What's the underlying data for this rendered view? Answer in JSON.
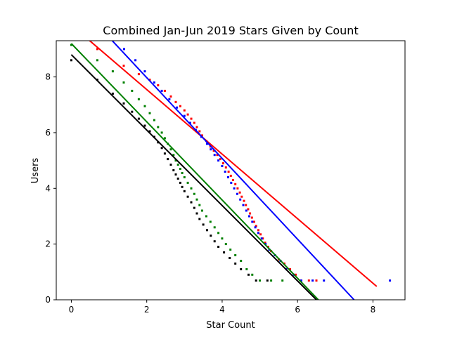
{
  "chart_data": {
    "type": "scatter",
    "title": "Combined Jan-Jun 2019 Stars Given by Count",
    "xlabel": "Star Count",
    "ylabel": "Users",
    "xlim": [
      -0.4,
      8.85
    ],
    "ylim": [
      0,
      9.3
    ],
    "x_ticks": [
      "0",
      "2",
      "4",
      "6",
      "8"
    ],
    "y_ticks": [
      "0",
      "2",
      "4",
      "6",
      "8"
    ],
    "grid": false,
    "legend": "none",
    "series": [
      {
        "color": "#ff0000",
        "points": [
          [
            0.69,
            9.0
          ],
          [
            1.39,
            8.4
          ],
          [
            1.79,
            8.1
          ],
          [
            2.08,
            7.9
          ],
          [
            2.3,
            7.7
          ],
          [
            2.48,
            7.5
          ],
          [
            2.64,
            7.3
          ],
          [
            2.77,
            7.1
          ],
          [
            2.89,
            6.95
          ],
          [
            3.0,
            6.8
          ],
          [
            3.09,
            6.65
          ],
          [
            3.18,
            6.5
          ],
          [
            3.26,
            6.35
          ],
          [
            3.33,
            6.2
          ],
          [
            3.4,
            6.05
          ],
          [
            3.47,
            5.9
          ],
          [
            3.58,
            5.7
          ],
          [
            3.69,
            5.5
          ],
          [
            3.78,
            5.35
          ],
          [
            3.87,
            5.2
          ],
          [
            3.95,
            5.05
          ],
          [
            4.03,
            4.9
          ],
          [
            4.1,
            4.75
          ],
          [
            4.17,
            4.6
          ],
          [
            4.23,
            4.45
          ],
          [
            4.29,
            4.3
          ],
          [
            4.35,
            4.15
          ],
          [
            4.41,
            4.0
          ],
          [
            4.47,
            3.85
          ],
          [
            4.52,
            3.7
          ],
          [
            4.58,
            3.55
          ],
          [
            4.63,
            3.4
          ],
          [
            4.69,
            3.25
          ],
          [
            4.74,
            3.1
          ],
          [
            4.79,
            2.95
          ],
          [
            4.85,
            2.8
          ],
          [
            4.9,
            2.65
          ],
          [
            4.96,
            2.5
          ],
          [
            5.02,
            2.35
          ],
          [
            5.08,
            2.2
          ],
          [
            5.14,
            2.05
          ],
          [
            5.22,
            1.9
          ],
          [
            5.3,
            1.75
          ],
          [
            5.4,
            1.6
          ],
          [
            5.5,
            1.45
          ],
          [
            5.65,
            1.3
          ],
          [
            5.8,
            1.1
          ],
          [
            5.95,
            0.9
          ],
          [
            6.1,
            0.69
          ],
          [
            6.3,
            0.69
          ],
          [
            6.5,
            0.69
          ]
        ],
        "fit": [
          [
            0.4,
            9.4
          ],
          [
            8.1,
            0.48
          ]
        ]
      },
      {
        "color": "#0000ff",
        "points": [
          [
            1.4,
            9.0
          ],
          [
            1.7,
            8.6
          ],
          [
            1.95,
            8.2
          ],
          [
            2.2,
            7.8
          ],
          [
            2.4,
            7.5
          ],
          [
            2.6,
            7.2
          ],
          [
            2.8,
            6.9
          ],
          [
            3.0,
            6.6
          ],
          [
            3.15,
            6.35
          ],
          [
            3.3,
            6.1
          ],
          [
            3.45,
            5.85
          ],
          [
            3.6,
            5.6
          ],
          [
            3.7,
            5.4
          ],
          [
            3.8,
            5.2
          ],
          [
            3.9,
            5.0
          ],
          [
            4.0,
            4.8
          ],
          [
            4.08,
            4.6
          ],
          [
            4.16,
            4.4
          ],
          [
            4.24,
            4.2
          ],
          [
            4.32,
            4.0
          ],
          [
            4.4,
            3.8
          ],
          [
            4.48,
            3.6
          ],
          [
            4.56,
            3.4
          ],
          [
            4.64,
            3.2
          ],
          [
            4.72,
            3.0
          ],
          [
            4.8,
            2.8
          ],
          [
            4.88,
            2.6
          ],
          [
            4.96,
            2.4
          ],
          [
            5.05,
            2.2
          ],
          [
            5.15,
            2.0
          ],
          [
            5.25,
            1.8
          ],
          [
            5.4,
            1.6
          ],
          [
            5.55,
            1.4
          ],
          [
            5.7,
            1.1
          ],
          [
            5.9,
            0.9
          ],
          [
            6.1,
            0.69
          ],
          [
            6.4,
            0.69
          ],
          [
            6.7,
            0.69
          ],
          [
            8.45,
            0.69
          ]
        ],
        "fit": [
          [
            1.05,
            9.35
          ],
          [
            7.5,
            0.0
          ]
        ]
      },
      {
        "color": "#008000",
        "points": [
          [
            0.0,
            9.15
          ],
          [
            0.69,
            8.6
          ],
          [
            1.1,
            8.2
          ],
          [
            1.39,
            7.8
          ],
          [
            1.61,
            7.5
          ],
          [
            1.79,
            7.2
          ],
          [
            1.95,
            6.95
          ],
          [
            2.08,
            6.7
          ],
          [
            2.2,
            6.45
          ],
          [
            2.3,
            6.2
          ],
          [
            2.4,
            6.0
          ],
          [
            2.48,
            5.8
          ],
          [
            2.56,
            5.6
          ],
          [
            2.64,
            5.4
          ],
          [
            2.71,
            5.2
          ],
          [
            2.77,
            5.0
          ],
          [
            2.83,
            4.85
          ],
          [
            2.89,
            4.7
          ],
          [
            2.94,
            4.55
          ],
          [
            3.0,
            4.4
          ],
          [
            3.09,
            4.2
          ],
          [
            3.18,
            4.0
          ],
          [
            3.26,
            3.8
          ],
          [
            3.33,
            3.6
          ],
          [
            3.4,
            3.4
          ],
          [
            3.47,
            3.2
          ],
          [
            3.58,
            3.0
          ],
          [
            3.69,
            2.8
          ],
          [
            3.8,
            2.6
          ],
          [
            3.9,
            2.4
          ],
          [
            4.0,
            2.2
          ],
          [
            4.1,
            2.0
          ],
          [
            4.22,
            1.8
          ],
          [
            4.35,
            1.6
          ],
          [
            4.5,
            1.4
          ],
          [
            4.65,
            1.1
          ],
          [
            4.8,
            0.9
          ],
          [
            5.0,
            0.69
          ],
          [
            5.3,
            0.69
          ],
          [
            5.6,
            0.69
          ]
        ],
        "fit": [
          [
            0.0,
            9.2
          ],
          [
            6.55,
            0.0
          ]
        ]
      },
      {
        "color": "#000000",
        "points": [
          [
            0.0,
            8.6
          ],
          [
            0.69,
            7.9
          ],
          [
            1.1,
            7.4
          ],
          [
            1.39,
            7.05
          ],
          [
            1.61,
            6.75
          ],
          [
            1.79,
            6.5
          ],
          [
            1.95,
            6.25
          ],
          [
            2.08,
            6.05
          ],
          [
            2.2,
            5.85
          ],
          [
            2.3,
            5.65
          ],
          [
            2.4,
            5.45
          ],
          [
            2.48,
            5.25
          ],
          [
            2.56,
            5.05
          ],
          [
            2.64,
            4.85
          ],
          [
            2.71,
            4.65
          ],
          [
            2.77,
            4.5
          ],
          [
            2.83,
            4.35
          ],
          [
            2.89,
            4.2
          ],
          [
            2.94,
            4.05
          ],
          [
            3.0,
            3.9
          ],
          [
            3.09,
            3.7
          ],
          [
            3.18,
            3.5
          ],
          [
            3.26,
            3.3
          ],
          [
            3.33,
            3.1
          ],
          [
            3.4,
            2.9
          ],
          [
            3.5,
            2.7
          ],
          [
            3.6,
            2.5
          ],
          [
            3.7,
            2.3
          ],
          [
            3.8,
            2.1
          ],
          [
            3.9,
            1.9
          ],
          [
            4.05,
            1.7
          ],
          [
            4.2,
            1.5
          ],
          [
            4.35,
            1.3
          ],
          [
            4.5,
            1.1
          ],
          [
            4.7,
            0.9
          ],
          [
            4.9,
            0.69
          ],
          [
            5.2,
            0.69
          ]
        ],
        "fit": [
          [
            0.0,
            8.8
          ],
          [
            6.5,
            0.0
          ]
        ]
      }
    ]
  }
}
